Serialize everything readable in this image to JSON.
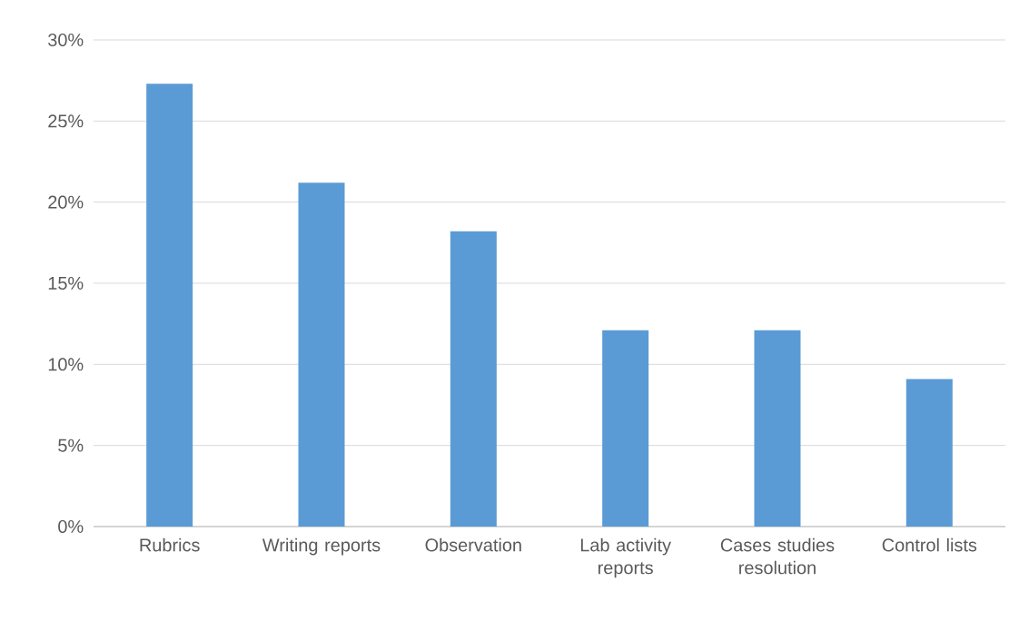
{
  "chart_data": {
    "type": "bar",
    "categories": [
      "Rubrics",
      "Writing reports",
      "Observation",
      "Lab activity reports",
      "Cases studies resolution",
      "Control lists"
    ],
    "values": [
      27.3,
      21.2,
      18.2,
      12.1,
      12.1,
      9.1
    ],
    "color": "#5b9bd5",
    "ylim": [
      0,
      30
    ],
    "yticks": [
      {
        "value": 0,
        "label": "0%"
      },
      {
        "value": 5,
        "label": "5%"
      },
      {
        "value": 10,
        "label": "10%"
      },
      {
        "value": 15,
        "label": "15%"
      },
      {
        "value": 20,
        "label": "20%"
      },
      {
        "value": 25,
        "label": "25%"
      },
      {
        "value": 30,
        "label": "30%"
      }
    ],
    "grid": "y"
  }
}
